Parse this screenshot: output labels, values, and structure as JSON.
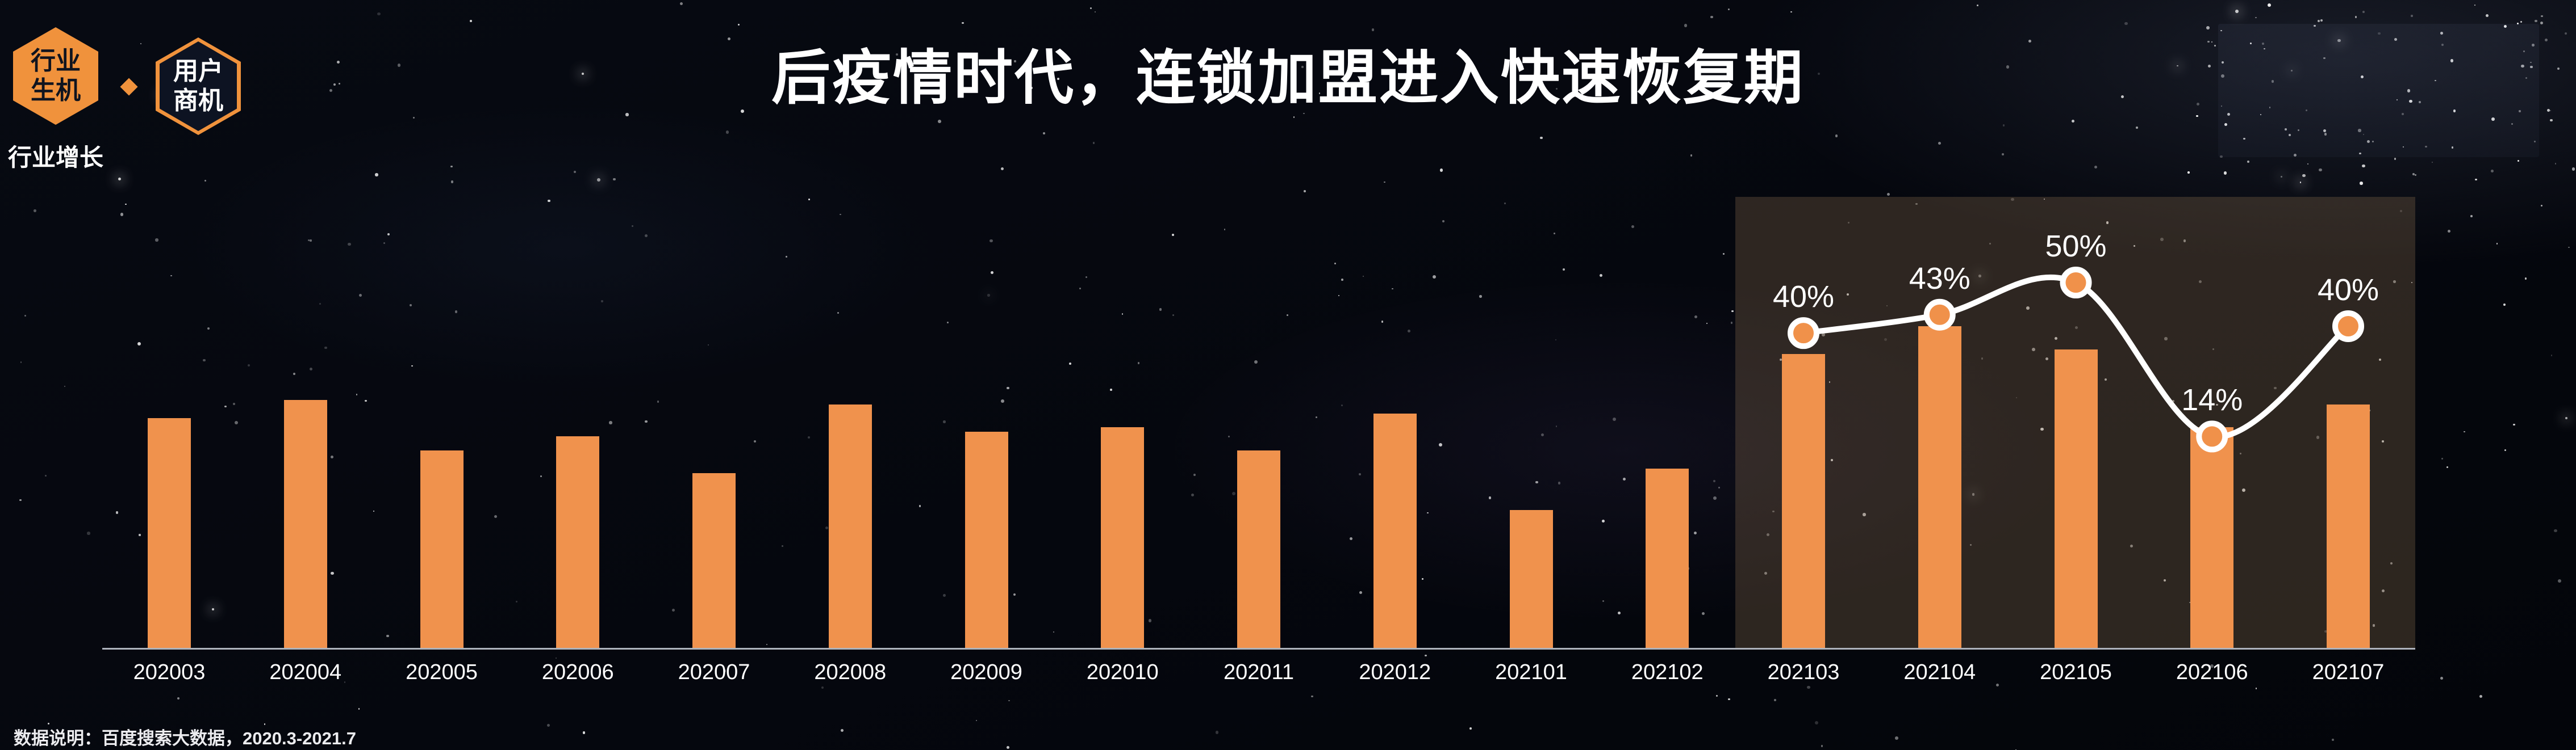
{
  "header": {
    "badge_primary": {
      "line1": "行业",
      "line2": "生机"
    },
    "badge_secondary": {
      "line1": "用户",
      "line2": "商机"
    },
    "badge_caption": "行业增长",
    "title": "后疫情时代，连锁加盟进入快速恢复期"
  },
  "footer": {
    "note": "数据说明：百度搜索大数据，2020.3-2021.7"
  },
  "chart_data": {
    "type": "bar",
    "title": "后疫情时代，连锁加盟进入快速恢复期",
    "xlabel": "",
    "ylabel": "",
    "ylim": [
      0,
      100
    ],
    "grid": false,
    "legend": false,
    "categories": [
      "202003",
      "202004",
      "202005",
      "202006",
      "202007",
      "202008",
      "202009",
      "202010",
      "202011",
      "202012",
      "202101",
      "202102",
      "202103",
      "202104",
      "202105",
      "202106",
      "202107"
    ],
    "series": [
      {
        "name": "bars",
        "type": "bar",
        "values": [
          50,
          54,
          43,
          46,
          38,
          53,
          47,
          48,
          43,
          51,
          30,
          39,
          64,
          70,
          65,
          48,
          53
        ]
      },
      {
        "name": "growth-rate-line",
        "type": "line",
        "categories": [
          "202103",
          "202104",
          "202105",
          "202106",
          "202107"
        ],
        "labels": [
          "40%",
          "43%",
          "50%",
          "14%",
          "40%"
        ],
        "values": [
          40,
          43,
          50,
          14,
          40
        ],
        "plotted": [
          68.5,
          72.5,
          79.5,
          46,
          70
        ]
      }
    ],
    "highlight_range": {
      "start": "202103",
      "end": "202107"
    },
    "colors": {
      "bar": "#F0924D",
      "line": "#FFFFFF",
      "dot_fill": "#F0914A",
      "dot_ring": "#FFFFFF",
      "highlight": "rgba(142,112,80,0.30)",
      "axis": "rgba(205,210,220,0.85)"
    }
  }
}
